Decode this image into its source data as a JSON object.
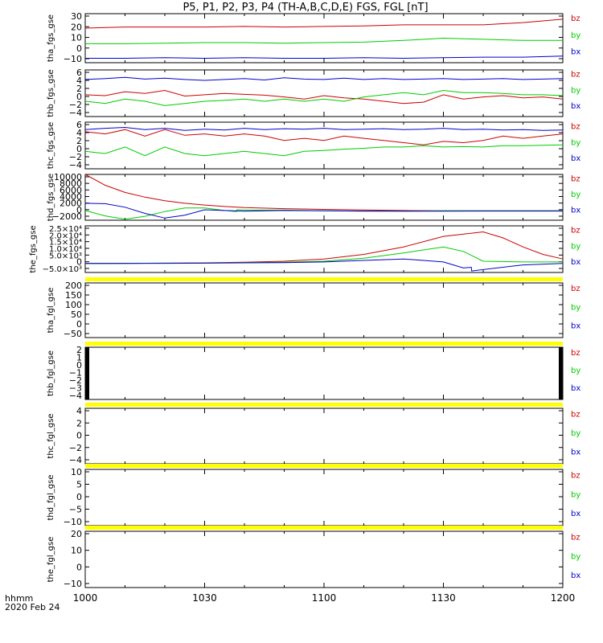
{
  "title": "P5, P1, P2, P3, P4 (TH-A,B,C,D,E) FGS, FGL [nT]",
  "footer": {
    "line1": "hhmm",
    "line2": "2020 Feb 24"
  },
  "colors": {
    "bz": "#cc0000",
    "by": "#00cc00",
    "bx": "#0000cc",
    "bar": "#ffff00",
    "axis": "#000000"
  },
  "chart_data": {
    "type": "line",
    "x_ticks": [
      "1000",
      "1030",
      "1100",
      "1130",
      "1200"
    ],
    "x_range": [
      "10:00",
      "12:00"
    ],
    "legend": [
      "bz",
      "by",
      "bx"
    ],
    "panels": [
      {
        "ylabel": "tha_fgs_gse",
        "yticks": [
          "30",
          "20",
          "10",
          "0",
          "−10"
        ],
        "ylim": [
          -12,
          32
        ],
        "has_data": true,
        "series": [
          {
            "name": "bz",
            "x": [
              0,
              10,
              20,
              30,
              40,
              50,
              60,
              70,
              80,
              90,
              100,
              110,
              120
            ],
            "y": [
              19,
              20,
              20,
              20,
              20.5,
              20,
              20.5,
              21,
              22,
              22,
              22,
              24,
              27
            ]
          },
          {
            "name": "by",
            "x": [
              0,
              10,
              20,
              30,
              40,
              50,
              60,
              70,
              80,
              90,
              100,
              110,
              120
            ],
            "y": [
              5,
              5,
              5.5,
              6,
              6,
              5.5,
              6,
              6.5,
              8,
              10,
              9,
              8,
              8
            ]
          },
          {
            "name": "bx",
            "x": [
              0,
              10,
              20,
              30,
              40,
              50,
              60,
              70,
              80,
              90,
              100,
              110,
              120
            ],
            "y": [
              -8,
              -8,
              -7.5,
              -8,
              -7.5,
              -8,
              -8,
              -7.5,
              -8,
              -7.5,
              -7,
              -7,
              -6
            ]
          }
        ]
      },
      {
        "ylabel": "thb_fgs_gse",
        "yticks": [
          "6",
          "4",
          "2",
          "0",
          "−2",
          "−4"
        ],
        "ylim": [
          -4.5,
          6.2
        ],
        "has_data": true,
        "series": [
          {
            "name": "bz",
            "x": [
              0,
              5,
              10,
              15,
              20,
              25,
              30,
              35,
              40,
              45,
              50,
              55,
              60,
              65,
              70,
              75,
              80,
              85,
              90,
              95,
              100,
              105,
              110,
              115,
              120
            ],
            "y": [
              0.5,
              0.3,
              1.2,
              0.8,
              1.5,
              0.2,
              0.5,
              0.8,
              0.6,
              0.4,
              0,
              -0.5,
              0.3,
              -0.2,
              -0.5,
              -1,
              -1.5,
              -1.2,
              0.5,
              -0.5,
              0,
              0.3,
              -0.2,
              0,
              -0.5
            ]
          },
          {
            "name": "by",
            "x": [
              0,
              5,
              10,
              15,
              20,
              25,
              30,
              35,
              40,
              45,
              50,
              55,
              60,
              65,
              70,
              75,
              80,
              85,
              90,
              95,
              100,
              105,
              110,
              115,
              120
            ],
            "y": [
              -1,
              -1.5,
              -0.5,
              -1,
              -2,
              -1.5,
              -1,
              -0.8,
              -0.5,
              -1,
              -0.5,
              -1,
              -0.5,
              -1,
              0,
              0.5,
              1,
              0.5,
              1.5,
              1,
              1,
              0.8,
              0.5,
              0.5,
              0.3
            ]
          },
          {
            "name": "bx",
            "x": [
              0,
              5,
              10,
              15,
              20,
              25,
              30,
              35,
              40,
              45,
              50,
              55,
              60,
              65,
              70,
              75,
              80,
              85,
              90,
              95,
              100,
              105,
              110,
              115,
              120
            ],
            "y": [
              4,
              4.2,
              4.5,
              4.1,
              4.3,
              4,
              3.8,
              4,
              4.2,
              3.9,
              4.4,
              4.1,
              4,
              4.3,
              4,
              4.2,
              4,
              4.1,
              4.2,
              4,
              4.1,
              4.2,
              4,
              4.1,
              4.2
            ]
          }
        ]
      },
      {
        "ylabel": "thc_fgs_gse",
        "yticks": [
          "6",
          "4",
          "2",
          "0",
          "−2",
          "−4"
        ],
        "ylim": [
          -4.5,
          6.2
        ],
        "has_data": true,
        "series": [
          {
            "name": "bz",
            "x": [
              0,
              5,
              10,
              15,
              20,
              25,
              30,
              35,
              40,
              45,
              50,
              55,
              60,
              65,
              70,
              75,
              80,
              85,
              90,
              95,
              100,
              105,
              110,
              115,
              120
            ],
            "y": [
              4,
              3.5,
              4.5,
              3,
              4.5,
              3.2,
              3.5,
              3,
              3.5,
              3,
              2,
              2.5,
              2,
              3,
              2.5,
              2,
              1.5,
              1,
              1.8,
              1.5,
              2,
              3,
              2.5,
              3,
              3.5
            ]
          },
          {
            "name": "by",
            "x": [
              0,
              5,
              10,
              15,
              20,
              25,
              30,
              35,
              40,
              45,
              50,
              55,
              60,
              65,
              70,
              75,
              80,
              85,
              90,
              95,
              100,
              105,
              110,
              115,
              120
            ],
            "y": [
              -0.5,
              -1,
              0.5,
              -1.5,
              0.5,
              -1,
              -1.5,
              -1,
              -0.5,
              -1,
              -1.5,
              -0.5,
              -0.3,
              0,
              0.2,
              0.5,
              0.5,
              0.8,
              0.5,
              0.6,
              0.5,
              0.8,
              0.8,
              0.9,
              1
            ]
          },
          {
            "name": "bx",
            "x": [
              0,
              5,
              10,
              15,
              20,
              25,
              30,
              35,
              40,
              45,
              50,
              55,
              60,
              65,
              70,
              75,
              80,
              85,
              90,
              95,
              100,
              105,
              110,
              115,
              120
            ],
            "y": [
              4.5,
              4.8,
              5,
              4.5,
              4.8,
              4.3,
              4.6,
              4.4,
              4.8,
              4.5,
              4.7,
              4.6,
              4.8,
              4.5,
              4.6,
              4.7,
              4.5,
              4.6,
              4.8,
              4.5,
              4.6,
              4.4,
              4.5,
              4.3,
              4.4
            ]
          }
        ]
      },
      {
        "ylabel": "thd_fgs_gse",
        "yticks": [
          "10000",
          "8000",
          "6000",
          "4000",
          "2000",
          "0",
          "−2000"
        ],
        "ylim": [
          -2700,
          10000
        ],
        "has_data": true,
        "series": [
          {
            "name": "bz",
            "x": [
              0,
              5,
              10,
              15,
              20,
              25,
              30,
              35,
              40,
              50,
              60,
              70,
              80,
              90,
              100,
              110,
              120
            ],
            "y": [
              10000,
              7000,
              5000,
              3700,
              2700,
              2000,
              1500,
              1100,
              800,
              500,
              300,
              150,
              0,
              -100,
              -100,
              -100,
              -100
            ]
          },
          {
            "name": "by",
            "x": [
              0,
              5,
              10,
              15,
              20,
              25,
              30,
              35,
              38,
              38.1,
              40,
              50,
              60,
              70,
              80,
              90,
              100,
              110,
              120
            ],
            "y": [
              0,
              -1500,
              -2400,
              -1600,
              -300,
              700,
              700,
              0,
              -300,
              200,
              100,
              100,
              -100,
              -200,
              -200,
              -100,
              -100,
              -100,
              -100
            ]
          },
          {
            "name": "bx",
            "x": [
              0,
              5,
              10,
              15,
              20,
              25,
              30,
              35,
              40,
              50,
              60,
              70,
              80,
              90,
              100,
              110,
              120
            ],
            "y": [
              2000,
              1900,
              900,
              -800,
              -2100,
              -1300,
              200,
              0,
              -200,
              0,
              -100,
              -150,
              -200,
              -200,
              -150,
              -150,
              -150
            ]
          }
        ]
      },
      {
        "ylabel": "the_fgs_gse",
        "yticks": [
          "2.5×10⁴",
          "2.0×10⁴",
          "1.5×10⁴",
          "1.0×10⁴",
          "5.0×10³",
          "0",
          "−5.0×10³"
        ],
        "ylim": [
          -6000,
          25000
        ],
        "has_data": true,
        "series": [
          {
            "name": "bz",
            "x": [
              0,
              10,
              20,
              30,
              40,
              50,
              60,
              70,
              80,
              90,
              100,
              105,
              110,
              115,
              120
            ],
            "y": [
              0,
              100,
              200,
              400,
              800,
              1500,
              3000,
              6000,
              11000,
              18000,
              21000,
              17000,
              11000,
              6000,
              3000
            ]
          },
          {
            "name": "by",
            "x": [
              0,
              10,
              20,
              30,
              40,
              50,
              60,
              70,
              80,
              90,
              95,
              100,
              110,
              120
            ],
            "y": [
              0,
              100,
              200,
              300,
              500,
              800,
              1500,
              3500,
              7000,
              11000,
              8000,
              1500,
              1000,
              1000
            ]
          },
          {
            "name": "bx",
            "x": [
              0,
              10,
              20,
              30,
              40,
              50,
              60,
              70,
              80,
              90,
              95,
              97,
              97.1,
              110,
              120
            ],
            "y": [
              0,
              50,
              100,
              200,
              400,
              600,
              1000,
              2000,
              3000,
              1000,
              -3000,
              -2500,
              -5000,
              -1000,
              0
            ]
          }
        ]
      },
      {
        "ylabel": "tha_fgl_gse",
        "yticks": [
          "200",
          "150",
          "100",
          "50",
          "0",
          "−50"
        ],
        "ylim": [
          -65,
          215
        ],
        "has_data": false,
        "series": []
      },
      {
        "ylabel": "thb_fgl_gse",
        "yticks": [
          "2",
          "1",
          "0",
          "−1",
          "−2",
          "−3",
          "−4"
        ],
        "ylim": [
          -4.4,
          2.4
        ],
        "has_data": false,
        "edge_blocks": true,
        "series": []
      },
      {
        "ylabel": "thc_fgl_gse",
        "yticks": [
          "4",
          "2",
          "0",
          "−2",
          "−4"
        ],
        "ylim": [
          -5,
          5
        ],
        "has_data": false,
        "series": []
      },
      {
        "ylabel": "thd_fgl_gse",
        "yticks": [
          "10",
          "5",
          "0",
          "−5",
          "−10"
        ],
        "ylim": [
          -11.5,
          11.5
        ],
        "has_data": false,
        "series": []
      },
      {
        "ylabel": "the_fgl_gse",
        "yticks": [
          "20",
          "10",
          "0",
          "−10"
        ],
        "ylim": [
          -12,
          24
        ],
        "has_data": false,
        "series": []
      }
    ]
  }
}
